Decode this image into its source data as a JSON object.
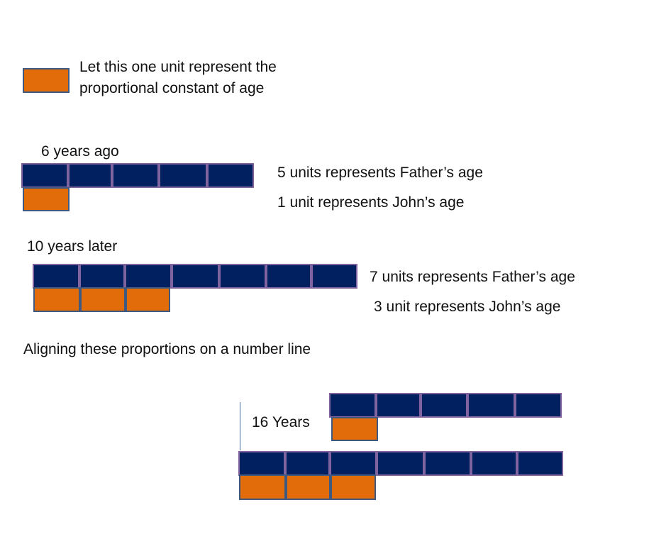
{
  "legend": {
    "line1": "Let this one unit represent the",
    "line2": "proportional constant of age"
  },
  "section1": {
    "heading": "6 years ago",
    "father_units": 5,
    "john_units": 1,
    "father_label": "5 units represents Father’s age",
    "john_label": "1 unit represents John’s age"
  },
  "section2": {
    "heading": "10 years later",
    "father_units": 7,
    "john_units": 3,
    "father_label": "7 units represents Father’s age",
    "john_label": "3 unit represents John’s age"
  },
  "section3": {
    "heading": "Aligning these proportions on a number line",
    "gap_label": "16 Years"
  },
  "colors": {
    "father_unit": "#002060",
    "john_unit": "#E36C0A"
  }
}
